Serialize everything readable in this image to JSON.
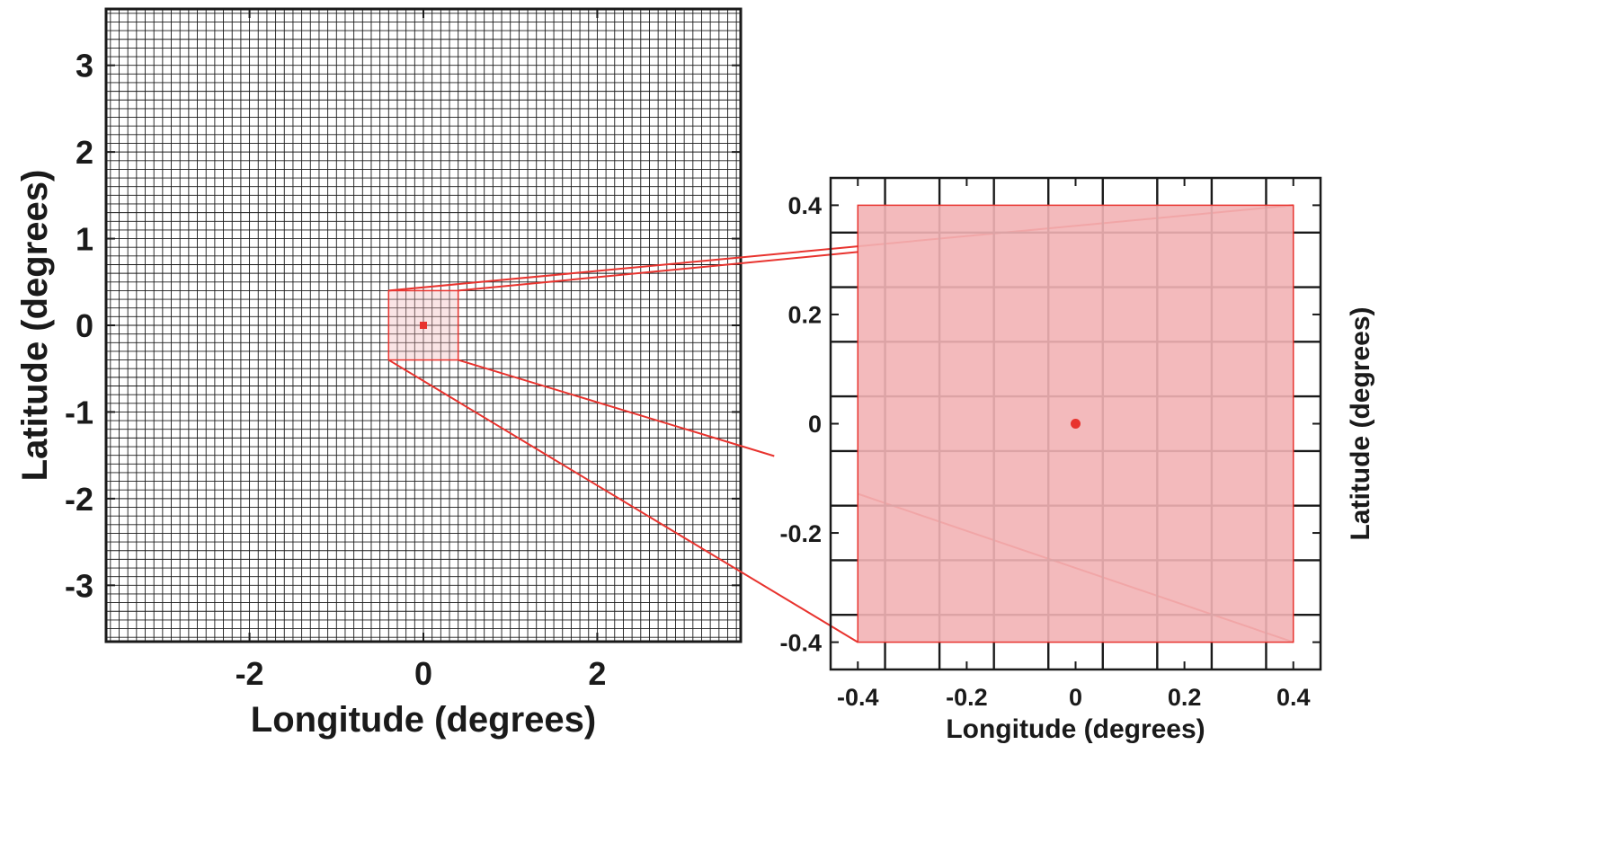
{
  "chart_data": [
    {
      "type": "scatter",
      "panel": "overview",
      "xlabel": "Longitude (degrees)",
      "ylabel": "Latitude (degrees)",
      "xlim": [
        -3.65,
        3.65
      ],
      "ylim": [
        -3.65,
        3.65
      ],
      "x_ticks": [
        -2,
        0,
        2
      ],
      "y_ticks": [
        3,
        2,
        1,
        0,
        -1,
        -2,
        -3
      ],
      "grid": true,
      "grid_spacing": 0.1,
      "points": [
        {
          "x": 0,
          "y": 0
        }
      ],
      "highlight_region": {
        "x": [
          -0.4,
          0.4
        ],
        "y": [
          -0.4,
          0.4
        ]
      }
    },
    {
      "type": "scatter",
      "panel": "zoom",
      "xlabel": "Longitude (degrees)",
      "ylabel": "Latitude (degrees)",
      "ylabel_position": "right",
      "xlim": [
        -0.45,
        0.45
      ],
      "ylim": [
        -0.45,
        0.45
      ],
      "x_ticks": [
        "-0.4",
        "-0.2",
        "0",
        "0.2",
        "0.4"
      ],
      "y_ticks": [
        "0.4",
        "0.2",
        "0",
        "-0.2",
        "-0.4"
      ],
      "grid": true,
      "grid_spacing": 0.1,
      "grid_offset": 0.05,
      "points": [
        {
          "x": 0,
          "y": 0
        }
      ],
      "highlight_region": {
        "x": [
          -0.4,
          0.4
        ],
        "y": [
          -0.4,
          0.4
        ]
      }
    }
  ],
  "colors": {
    "axis": "#1a1a1a",
    "grid": "#1a1a1a",
    "highlight_fill": "#f2b3b5",
    "highlight_stroke": "#e8332e",
    "point": "#e8332e"
  }
}
